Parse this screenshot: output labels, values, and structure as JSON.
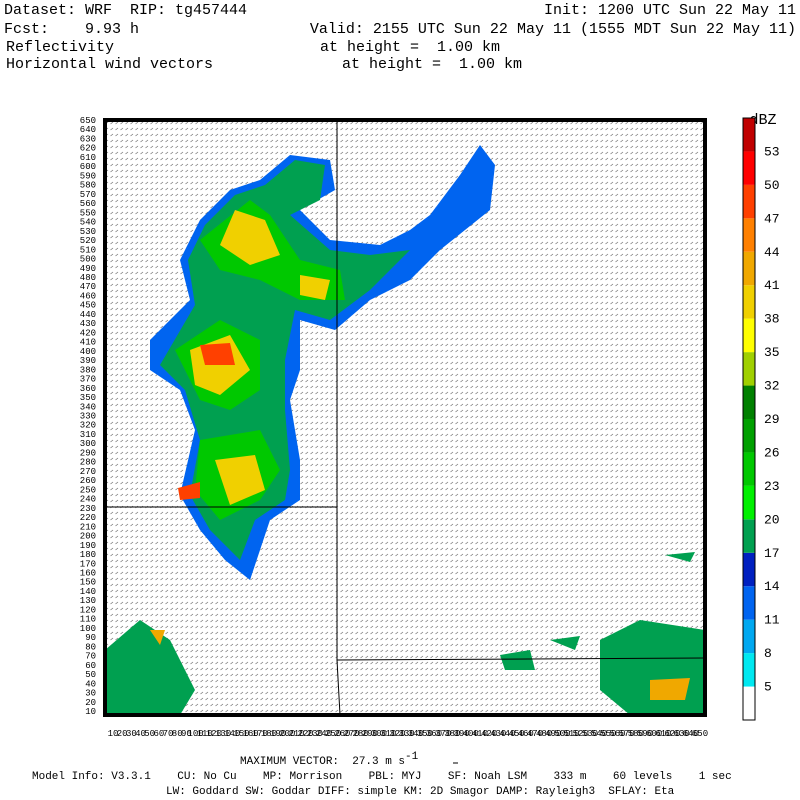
{
  "header": {
    "dataset": "Dataset: WRF  RIP: tg457444",
    "init": "Init: 1200 UTC Sun 22 May 11",
    "fcst": "Fcst:    9.93 h",
    "valid": "Valid: 2155 UTC Sun 22 May 11 (1555 MDT Sun 22 May 11)",
    "field1": "Reflectivity",
    "field1_level": "at height =  1.00 km",
    "field2": "Horizontal wind vectors",
    "field2_level": "at height =  1.00 km"
  },
  "axes": {
    "y_labels": [
      10,
      20,
      30,
      40,
      50,
      60,
      70,
      80,
      90,
      100,
      110,
      120,
      130,
      140,
      150,
      160,
      170,
      180,
      190,
      200,
      210,
      220,
      230,
      240,
      250,
      260,
      270,
      280,
      290,
      300,
      310,
      320,
      330,
      340,
      350,
      360,
      370,
      380,
      390,
      400,
      410,
      420,
      430,
      440,
      450,
      460,
      470,
      480,
      490,
      500,
      510,
      520,
      530,
      540,
      550,
      560,
      570,
      580,
      590,
      600,
      610,
      620,
      630,
      640,
      650
    ],
    "x_labels": [
      10,
      20,
      30,
      40,
      50,
      60,
      70,
      80,
      90,
      100,
      110,
      120,
      130,
      140,
      150,
      160,
      170,
      180,
      190,
      200,
      210,
      220,
      230,
      240,
      250,
      260,
      270,
      280,
      290,
      300,
      310,
      320,
      330,
      340,
      350,
      360,
      370,
      380,
      390,
      400,
      410,
      420,
      430,
      440,
      450,
      460,
      470,
      480,
      490,
      500,
      510,
      520,
      530,
      540,
      550,
      560,
      570,
      580,
      590,
      600,
      610,
      620,
      630,
      640,
      650
    ]
  },
  "colorbar": {
    "unit": "dBZ",
    "labels": [
      5,
      8,
      11,
      14,
      17,
      20,
      23,
      26,
      29,
      32,
      35,
      38,
      41,
      44,
      47,
      50,
      53
    ],
    "colors": [
      "#ffffff",
      "#00e8f0",
      "#00a8f0",
      "#0064f0",
      "#0020c0",
      "#00a050",
      "#00f000",
      "#00c800",
      "#00a000",
      "#008000",
      "#a0d000",
      "#ffff00",
      "#f0d000",
      "#f0a800",
      "#ff8000",
      "#ff4000",
      "#ff0000",
      "#c00000"
    ]
  },
  "footer": {
    "max_vector": "MAXIMUM VECTOR:  27.3 m s",
    "max_vector_exp": "-1",
    "model_info": "Model Info: V3.3.1    CU: No Cu    MP: Morrison    PBL: MYJ    SF: Noah LSM    333 m    60 levels    1 sec",
    "physics": "LW: Goddard SW: Goddar DIFF: simple KM: 2D Smagor DAMP: Rayleigh3  SFLAY: Eta"
  }
}
